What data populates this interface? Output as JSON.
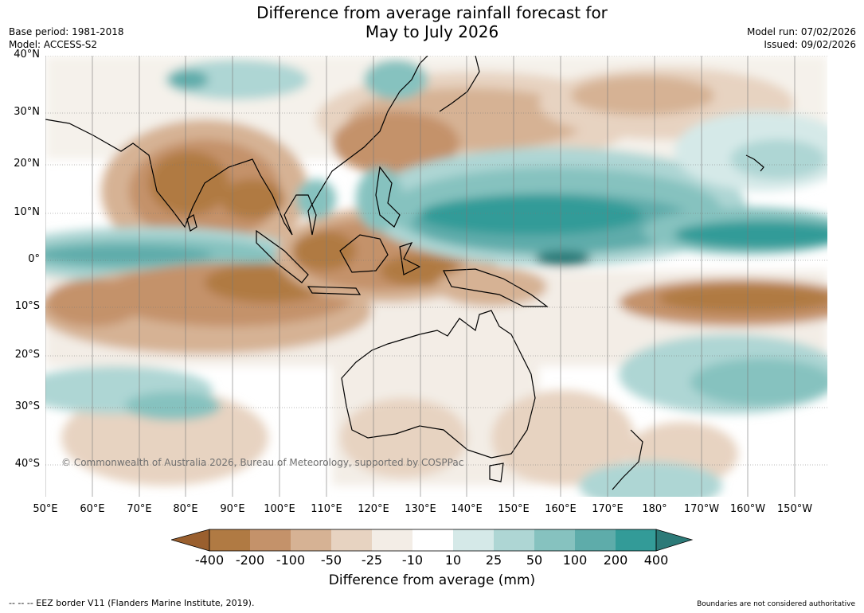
{
  "title_line1": "Difference from average rainfall forecast for",
  "title_line2": "May to July 2026",
  "base_period": "Base period: 1981-2018",
  "model": "Model: ACCESS-S2",
  "model_run": "Model run: 07/02/2026",
  "issued": "Issued: 09/02/2026",
  "lat_labels": [
    "40°N",
    "30°N",
    "20°N",
    "10°N",
    "0°",
    "10°S",
    "20°S",
    "30°S",
    "40°S"
  ],
  "lon_labels": [
    "50°E",
    "60°E",
    "70°E",
    "80°E",
    "90°E",
    "100°E",
    "110°E",
    "120°E",
    "130°E",
    "140°E",
    "150°E",
    "160°E",
    "170°E",
    "180°",
    "170°W",
    "160°W",
    "150°W"
  ],
  "copyright": "© Commonwealth of Australia 2026, Bureau of Meteorology, supported by COSPPac",
  "colorbar": {
    "ticks": [
      "-400",
      "-200",
      "-100",
      "-50",
      "-25",
      "-10",
      "10",
      "25",
      "50",
      "100",
      "200",
      "400"
    ],
    "colors": [
      "#9a5f2e",
      "#b07a43",
      "#c4926a",
      "#d6b294",
      "#e7d3c1",
      "#f3ede6",
      "#ffffff",
      "#d5e9e8",
      "#aed6d4",
      "#86c2bf",
      "#5eacaa",
      "#339b98",
      "#2c7a78"
    ],
    "label": "Difference from average (mm)"
  },
  "footer_left": "--  --  -- EEZ border V11 (Flanders Marine Institute, 2019).",
  "footer_right": "Boundaries are not considered authoritative",
  "map": {
    "lat_range": [
      -46,
      40
    ],
    "lon_range": [
      50,
      217
    ],
    "features": [
      "Asia",
      "Indian subcontinent",
      "Indochina",
      "Maritime Continent",
      "Australia",
      "New Zealand",
      "Papua New Guinea"
    ]
  }
}
